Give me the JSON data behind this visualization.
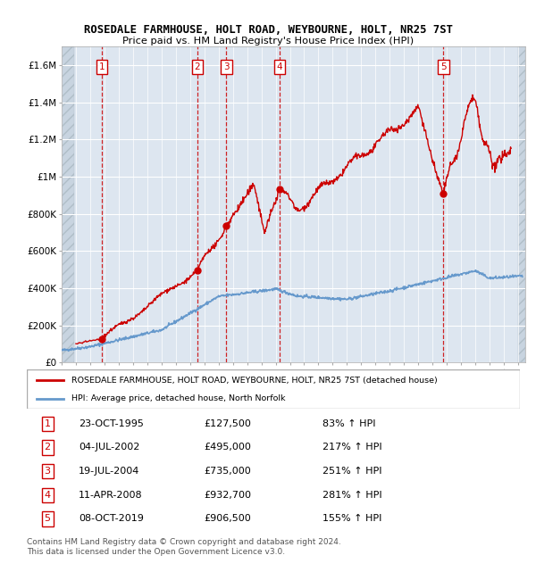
{
  "title": "ROSEDALE FARMHOUSE, HOLT ROAD, WEYBOURNE, HOLT, NR25 7ST",
  "subtitle": "Price paid vs. HM Land Registry's House Price Index (HPI)",
  "sale_prices": [
    127500,
    495000,
    735000,
    932700,
    906500
  ],
  "sale_labels": [
    "1",
    "2",
    "3",
    "4",
    "5"
  ],
  "sale_pct": [
    "83%",
    "217%",
    "251%",
    "281%",
    "155%"
  ],
  "sale_dates_str": [
    "23-OCT-1995",
    "04-JUL-2002",
    "19-JUL-2004",
    "11-APR-2008",
    "08-OCT-2019"
  ],
  "sale_prices_str": [
    "£127,500",
    "£495,000",
    "£735,000",
    "£932,700",
    "£906,500"
  ],
  "sale_year_floats": [
    1995.81,
    2002.51,
    2004.54,
    2008.28,
    2019.77
  ],
  "hpi_label": "HPI: Average price, detached house, North Norfolk",
  "property_label": "ROSEDALE FARMHOUSE, HOLT ROAD, WEYBOURNE, HOLT, NR25 7ST (detached house)",
  "red_color": "#cc0000",
  "blue_color": "#6699cc",
  "bg_color": "#dde6f0",
  "hatch_color": "#c8d4e0",
  "ylim": [
    0,
    1700000
  ],
  "yticks": [
    0,
    200000,
    400000,
    600000,
    800000,
    1000000,
    1200000,
    1400000,
    1600000
  ],
  "ytick_labels": [
    "£0",
    "£200K",
    "£400K",
    "£600K",
    "£800K",
    "£1M",
    "£1.2M",
    "£1.4M",
    "£1.6M"
  ],
  "footer": "Contains HM Land Registry data © Crown copyright and database right 2024.\nThis data is licensed under the Open Government Licence v3.0.",
  "xlim_start": 1993.0,
  "xlim_end": 2025.5
}
